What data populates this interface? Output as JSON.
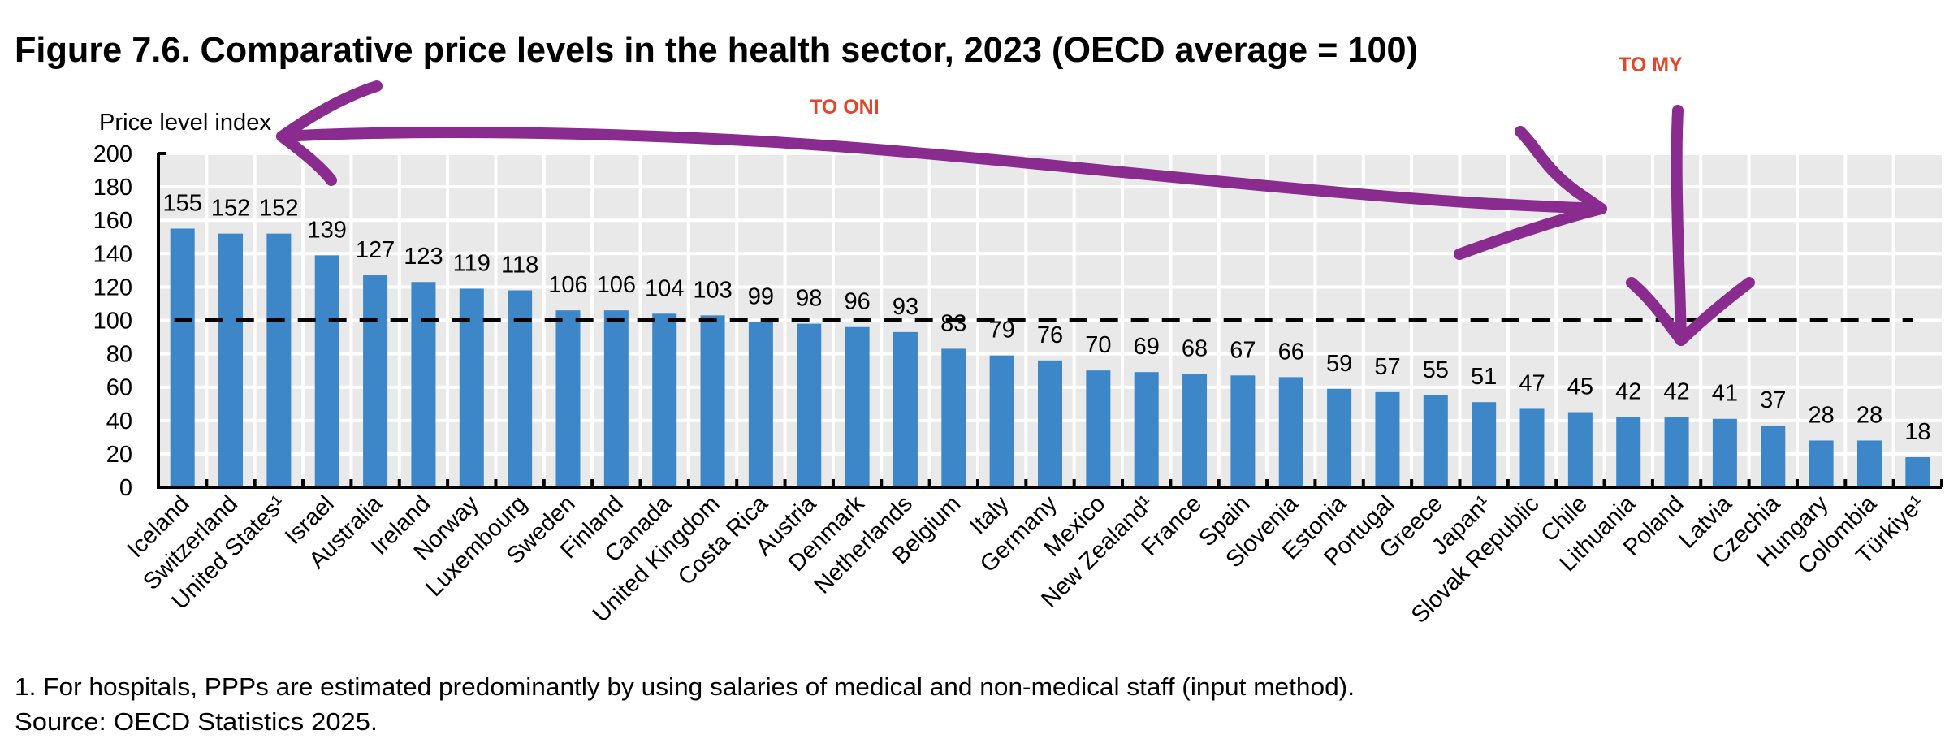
{
  "chart_data": {
    "type": "bar",
    "title": "Figure 7.6. Comparative price levels in the health sector, 2023 (OECD average = 100)",
    "ylabel": "Price level index",
    "xlabel": "",
    "ylim": [
      0,
      200
    ],
    "yticks": [
      0,
      20,
      40,
      60,
      80,
      100,
      120,
      140,
      160,
      180,
      200
    ],
    "grid": true,
    "reference_line": {
      "value": 100,
      "style": "dashed",
      "label": "OECD average = 100"
    },
    "categories": [
      "Iceland",
      "Switzerland",
      "United States¹",
      "Israel",
      "Australia",
      "Ireland",
      "Norway",
      "Luxembourg",
      "Sweden",
      "Finland",
      "Canada",
      "United Kingdom",
      "Costa Rica",
      "Austria",
      "Denmark",
      "Netherlands",
      "Belgium",
      "Italy",
      "Germany",
      "Mexico",
      "New Zealand¹",
      "France",
      "Spain",
      "Slovenia",
      "Estonia",
      "Portugal",
      "Greece",
      "Japan¹",
      "Slovak Republic",
      "Chile",
      "Lithuania",
      "Poland",
      "Latvia",
      "Czechia",
      "Hungary",
      "Colombia",
      "Türkiye¹"
    ],
    "values": [
      155,
      152,
      152,
      139,
      127,
      123,
      119,
      118,
      106,
      106,
      104,
      103,
      99,
      98,
      96,
      93,
      83,
      79,
      76,
      70,
      69,
      68,
      67,
      66,
      59,
      57,
      55,
      51,
      47,
      45,
      42,
      42,
      41,
      37,
      28,
      28,
      18
    ],
    "colors": {
      "bar": "#3d87c9",
      "plot_bg": "#e9e9e9",
      "annotation_text": "#e2462b",
      "annotation_ink": "#8a2b8f"
    }
  },
  "notes": {
    "footnote": "1. For hospitals, PPPs are estimated predominantly by using salaries of medical and non-medical staff (input method).",
    "source": "Source: OECD Statistics 2025."
  },
  "annotations": {
    "left_label": "TO ONI",
    "right_label": "TO MY"
  }
}
